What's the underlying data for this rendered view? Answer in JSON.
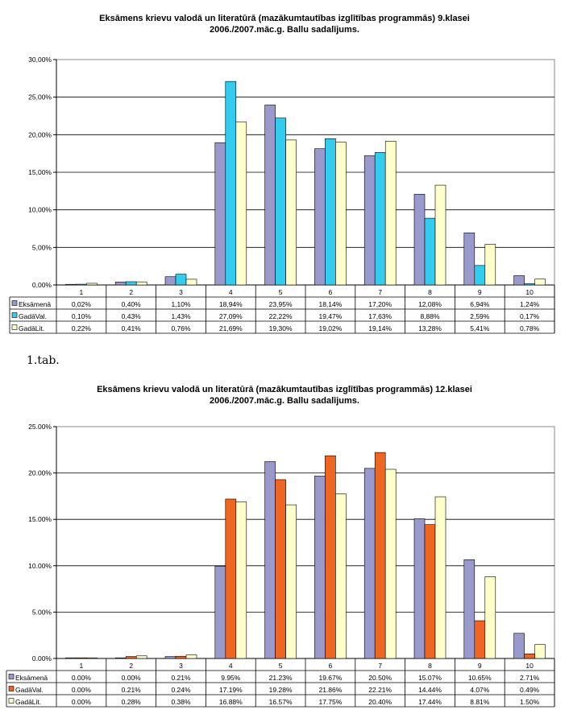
{
  "caption": "1.tab.",
  "chart_data": [
    {
      "type": "bar",
      "title": "Eksāmens krievu valodā un literatūrā (mazākumtautības izglītības programmās) 9.klasei",
      "subtitle": "2006./2007.māc.g. Ballu sadalījums.",
      "categories": [
        "1",
        "2",
        "3",
        "4",
        "5",
        "6",
        "7",
        "8",
        "9",
        "10"
      ],
      "ylim": [
        0,
        30
      ],
      "yticks": [
        "0,00%",
        "5,00%",
        "10,00%",
        "15,00%",
        "20,00%",
        "25,00%",
        "30,00%"
      ],
      "grid": true,
      "series": [
        {
          "name": "Eksāmenā",
          "color": "#9999cc",
          "values": [
            0.02,
            0.4,
            1.1,
            18.94,
            23.95,
            18.14,
            17.2,
            12.08,
            6.94,
            1.24
          ],
          "labels": [
            "0,02%",
            "0,40%",
            "1,10%",
            "18,94%",
            "23,95%",
            "18,14%",
            "17,20%",
            "12,08%",
            "6,94%",
            "1,24%"
          ]
        },
        {
          "name": "GadāVal.",
          "color": "#33ccee",
          "values": [
            0.1,
            0.43,
            1.43,
            27.09,
            22.22,
            19.47,
            17.63,
            8.88,
            2.59,
            0.17
          ],
          "labels": [
            "0,10%",
            "0,43%",
            "1,43%",
            "27,09%",
            "22,22%",
            "19,47%",
            "17,63%",
            "8,88%",
            "2,59%",
            "0,17%"
          ]
        },
        {
          "name": "GadāLit.",
          "color": "#ffffcc",
          "values": [
            0.22,
            0.41,
            0.76,
            21.69,
            19.3,
            19.02,
            19.14,
            13.28,
            5.41,
            0.78
          ],
          "labels": [
            "0,22%",
            "0,41%",
            "0,76%",
            "21,69%",
            "19,30%",
            "19,02%",
            "19,14%",
            "13,28%",
            "5,41%",
            "0,78%"
          ]
        }
      ]
    },
    {
      "type": "bar",
      "title": "Eksāmens krievu valodā un literatūrā (mazākumtautības izglītības programmās) 12.klasei",
      "subtitle": "2006./2007.māc.g. Ballu sadalījums.",
      "categories": [
        "1",
        "2",
        "3",
        "4",
        "5",
        "6",
        "7",
        "8",
        "9",
        "10"
      ],
      "ylim": [
        0,
        25
      ],
      "yticks": [
        "0.00%",
        "5.00%",
        "10.00%",
        "15.00%",
        "20.00%",
        "25.00%"
      ],
      "grid": true,
      "series": [
        {
          "name": "Eksāmenā",
          "color": "#9999cc",
          "values": [
            0.0,
            0.0,
            0.21,
            9.95,
            21.23,
            19.67,
            20.5,
            15.07,
            10.65,
            2.71
          ],
          "labels": [
            "0.00%",
            "0.00%",
            "0.21%",
            "9.95%",
            "21.23%",
            "19.67%",
            "20.50%",
            "15.07%",
            "10.65%",
            "2.71%"
          ]
        },
        {
          "name": "GadāVal.",
          "color": "#ee6622",
          "values": [
            0.0,
            0.21,
            0.24,
            17.19,
            19.28,
            21.86,
            22.21,
            14.44,
            4.07,
            0.49
          ],
          "labels": [
            "0.00%",
            "0.21%",
            "0.24%",
            "17.19%",
            "19.28%",
            "21.86%",
            "22.21%",
            "14.44%",
            "4.07%",
            "0.49%"
          ]
        },
        {
          "name": "GadāLit.",
          "color": "#ffffcc",
          "values": [
            0.0,
            0.28,
            0.38,
            16.88,
            16.57,
            17.75,
            20.4,
            17.44,
            8.81,
            1.5
          ],
          "labels": [
            "0.00%",
            "0.28%",
            "0.38%",
            "16.88%",
            "16.57%",
            "17.75%",
            "20.40%",
            "17.44%",
            "8.81%",
            "1.50%"
          ]
        }
      ]
    }
  ]
}
